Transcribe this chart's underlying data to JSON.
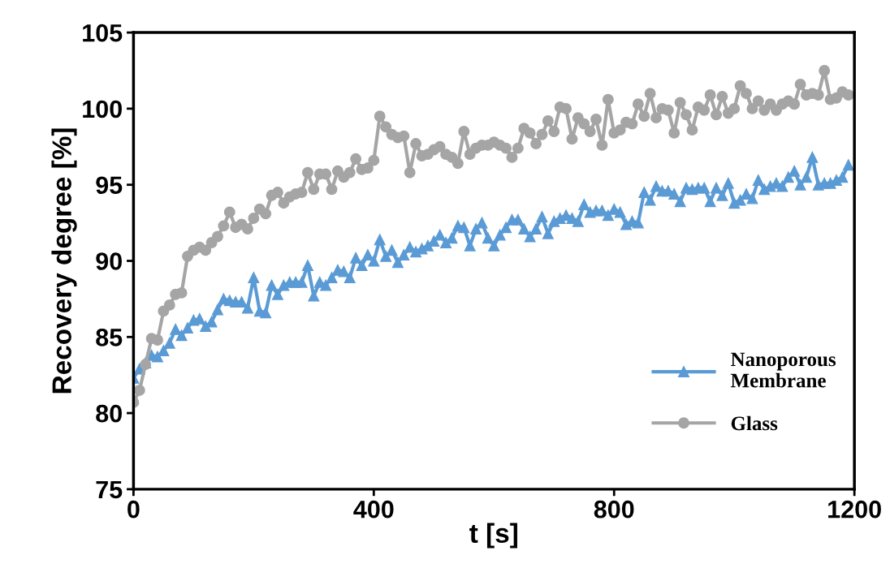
{
  "chart_data": {
    "type": "line",
    "xlabel": "t [s]",
    "ylabel": "Recovery degree [%]",
    "x": [
      0,
      10,
      20,
      30,
      40,
      50,
      60,
      70,
      80,
      90,
      100,
      110,
      120,
      130,
      140,
      150,
      160,
      170,
      180,
      190,
      200,
      210,
      220,
      230,
      240,
      250,
      260,
      270,
      280,
      290,
      300,
      310,
      320,
      330,
      340,
      350,
      360,
      370,
      380,
      390,
      400,
      410,
      420,
      430,
      440,
      450,
      460,
      470,
      480,
      490,
      500,
      510,
      520,
      530,
      540,
      550,
      560,
      570,
      580,
      590,
      600,
      610,
      620,
      630,
      640,
      650,
      660,
      670,
      680,
      690,
      700,
      710,
      720,
      730,
      740,
      750,
      760,
      770,
      780,
      790,
      800,
      810,
      820,
      830,
      840,
      850,
      860,
      870,
      880,
      890,
      900,
      910,
      920,
      930,
      940,
      950,
      960,
      970,
      980,
      990,
      1000,
      1010,
      1020,
      1030,
      1040,
      1050,
      1060,
      1070,
      1080,
      1090,
      1100,
      1110,
      1120,
      1130,
      1140,
      1150,
      1160,
      1170,
      1180,
      1190
    ],
    "series": [
      {
        "name": "Nanoporous\nMembrane",
        "color": "#5b9bd5",
        "marker": "triangle",
        "values": [
          82.3,
          82.9,
          83.3,
          83.8,
          83.7,
          84.1,
          84.6,
          85.5,
          85.1,
          85.6,
          86.1,
          86.2,
          85.7,
          86.0,
          86.8,
          87.5,
          87.4,
          87.3,
          87.3,
          86.9,
          88.9,
          86.7,
          86.6,
          88.4,
          87.8,
          88.4,
          88.6,
          88.6,
          88.6,
          89.7,
          87.7,
          88.6,
          88.4,
          88.9,
          89.4,
          89.3,
          88.9,
          90.2,
          89.7,
          90.4,
          90.0,
          91.4,
          90.3,
          90.7,
          89.9,
          90.4,
          90.9,
          90.6,
          90.8,
          91.0,
          91.3,
          91.7,
          91.2,
          91.5,
          92.3,
          92.2,
          91.0,
          92.1,
          92.5,
          91.5,
          91.0,
          91.7,
          92.2,
          92.7,
          92.7,
          92.1,
          91.6,
          92.1,
          92.9,
          91.8,
          92.6,
          92.8,
          93.0,
          92.8,
          92.6,
          93.7,
          93.2,
          93.3,
          93.3,
          93.0,
          93.4,
          93.2,
          92.4,
          92.6,
          92.5,
          94.5,
          94.0,
          94.9,
          94.6,
          94.6,
          94.4,
          93.9,
          94.8,
          94.7,
          94.8,
          94.8,
          93.9,
          94.8,
          94.3,
          95.1,
          93.8,
          94.0,
          94.4,
          94.1,
          95.3,
          94.7,
          94.9,
          95.1,
          94.9,
          95.5,
          95.9,
          95.0,
          95.5,
          96.8,
          95.0,
          95.1,
          95.1,
          95.3,
          95.5,
          96.3
        ]
      },
      {
        "name": "Glass",
        "color": "#a5a5a5",
        "marker": "circle",
        "values": [
          80.7,
          81.5,
          83.2,
          84.9,
          84.8,
          86.7,
          87.1,
          87.8,
          87.9,
          90.3,
          90.7,
          90.9,
          90.7,
          91.2,
          91.6,
          92.3,
          93.2,
          92.2,
          92.4,
          92.1,
          92.8,
          93.4,
          93.1,
          94.3,
          94.5,
          93.8,
          94.2,
          94.4,
          94.5,
          95.8,
          94.7,
          95.7,
          95.7,
          94.7,
          95.9,
          95.5,
          95.8,
          96.7,
          96.0,
          96.1,
          96.6,
          99.5,
          98.8,
          98.3,
          98.1,
          98.2,
          95.8,
          97.7,
          96.9,
          97.0,
          97.3,
          97.5,
          97.0,
          96.8,
          96.4,
          98.5,
          97.0,
          97.4,
          97.6,
          97.6,
          97.8,
          97.6,
          97.4,
          96.8,
          97.4,
          98.7,
          98.4,
          97.7,
          98.3,
          99.2,
          98.5,
          100.1,
          100.0,
          98.0,
          99.4,
          99.0,
          98.5,
          99.3,
          97.6,
          100.6,
          98.4,
          98.6,
          99.1,
          99.0,
          100.3,
          99.5,
          101.0,
          99.4,
          100.0,
          99.9,
          98.4,
          100.4,
          99.6,
          98.6,
          100.1,
          99.9,
          100.9,
          99.6,
          100.8,
          99.7,
          100.0,
          101.5,
          101.0,
          100.0,
          100.5,
          99.9,
          100.3,
          99.9,
          100.3,
          100.5,
          100.3,
          101.6,
          100.9,
          101.0,
          100.9,
          102.5,
          100.6,
          100.7,
          101.1,
          100.9
        ]
      }
    ],
    "xlim": [
      0,
      1200
    ],
    "xticks": [
      0,
      400,
      800,
      1200
    ],
    "ylim": [
      75,
      105
    ],
    "yticks": [
      75,
      80,
      85,
      90,
      95,
      100,
      105
    ],
    "grid": false,
    "legend": "bottom right",
    "line_style": "solid"
  }
}
